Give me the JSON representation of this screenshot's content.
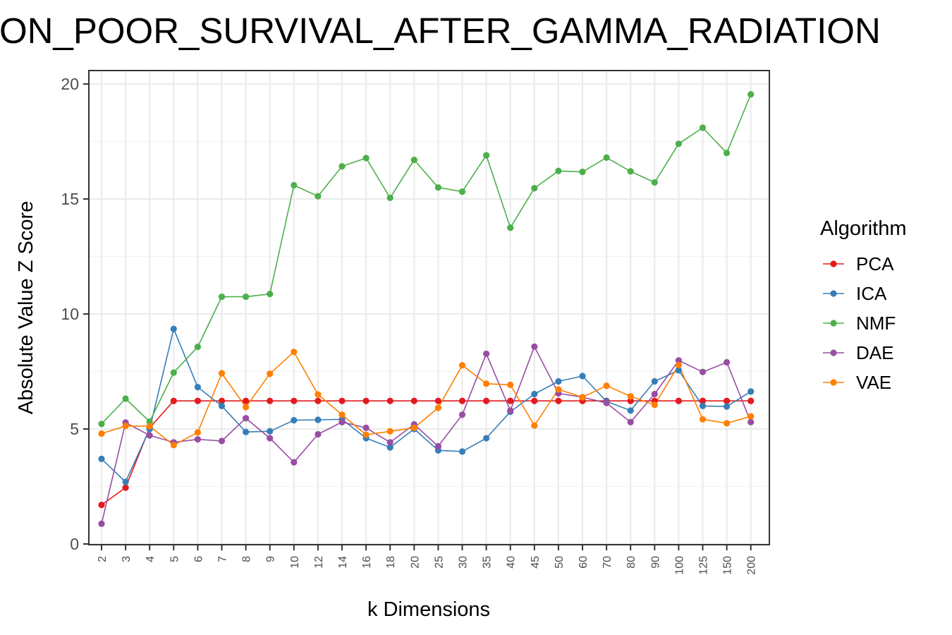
{
  "chart_data": {
    "type": "line",
    "title": "ON_POOR_SURVIVAL_AFTER_GAMMA_RADIATION",
    "xlabel": "k Dimensions",
    "ylabel": "Absolute Value Z Score",
    "ylim": [
      0,
      20.4
    ],
    "yticks": [
      0,
      5,
      10,
      15,
      20
    ],
    "grid": true,
    "legend": {
      "title": "Algorithm",
      "position": "right"
    },
    "categories": [
      "2",
      "3",
      "4",
      "5",
      "6",
      "7",
      "8",
      "9",
      "10",
      "12",
      "14",
      "16",
      "18",
      "20",
      "25",
      "30",
      "35",
      "40",
      "45",
      "50",
      "60",
      "70",
      "80",
      "90",
      "100",
      "125",
      "150",
      "200"
    ],
    "series": [
      {
        "name": "PCA",
        "color": "#e41a1c",
        "values": [
          1.7,
          2.45,
          5.05,
          6.22,
          6.22,
          6.22,
          6.22,
          6.22,
          6.22,
          6.22,
          6.22,
          6.22,
          6.22,
          6.22,
          6.22,
          6.22,
          6.22,
          6.22,
          6.22,
          6.22,
          6.22,
          6.22,
          6.22,
          6.22,
          6.22,
          6.22,
          6.22,
          6.22
        ]
      },
      {
        "name": "ICA",
        "color": "#377eb8",
        "values": [
          3.7,
          2.7,
          5.0,
          9.35,
          6.82,
          6.0,
          4.87,
          4.9,
          5.38,
          5.4,
          5.42,
          4.6,
          4.2,
          5.0,
          4.07,
          4.02,
          4.6,
          5.75,
          6.52,
          7.07,
          7.3,
          6.2,
          5.8,
          7.07,
          7.55,
          6.0,
          5.98,
          6.63
        ]
      },
      {
        "name": "NMF",
        "color": "#4daf4a",
        "values": [
          5.22,
          6.32,
          5.32,
          7.45,
          8.57,
          10.75,
          10.75,
          10.87,
          15.6,
          15.12,
          16.42,
          16.78,
          15.05,
          16.7,
          15.5,
          15.32,
          16.9,
          13.75,
          15.47,
          16.22,
          16.18,
          16.8,
          16.2,
          15.72,
          17.4,
          18.1,
          17.0,
          19.55
        ]
      },
      {
        "name": "DAE",
        "color": "#984ea3",
        "values": [
          0.88,
          5.28,
          4.72,
          4.42,
          4.55,
          4.48,
          5.47,
          4.6,
          3.55,
          4.77,
          5.3,
          5.05,
          4.42,
          5.2,
          4.25,
          5.62,
          8.27,
          5.8,
          8.58,
          6.55,
          6.38,
          6.13,
          5.3,
          6.52,
          7.98,
          7.48,
          7.9,
          5.3
        ]
      },
      {
        "name": "VAE",
        "color": "#ff7f00",
        "values": [
          4.8,
          5.13,
          5.12,
          4.3,
          4.85,
          7.42,
          5.95,
          7.4,
          8.35,
          6.5,
          5.62,
          4.75,
          4.9,
          5.05,
          5.92,
          7.77,
          6.97,
          6.92,
          5.15,
          6.72,
          6.38,
          6.88,
          6.42,
          6.05,
          7.78,
          5.42,
          5.25,
          5.55
        ]
      }
    ]
  }
}
